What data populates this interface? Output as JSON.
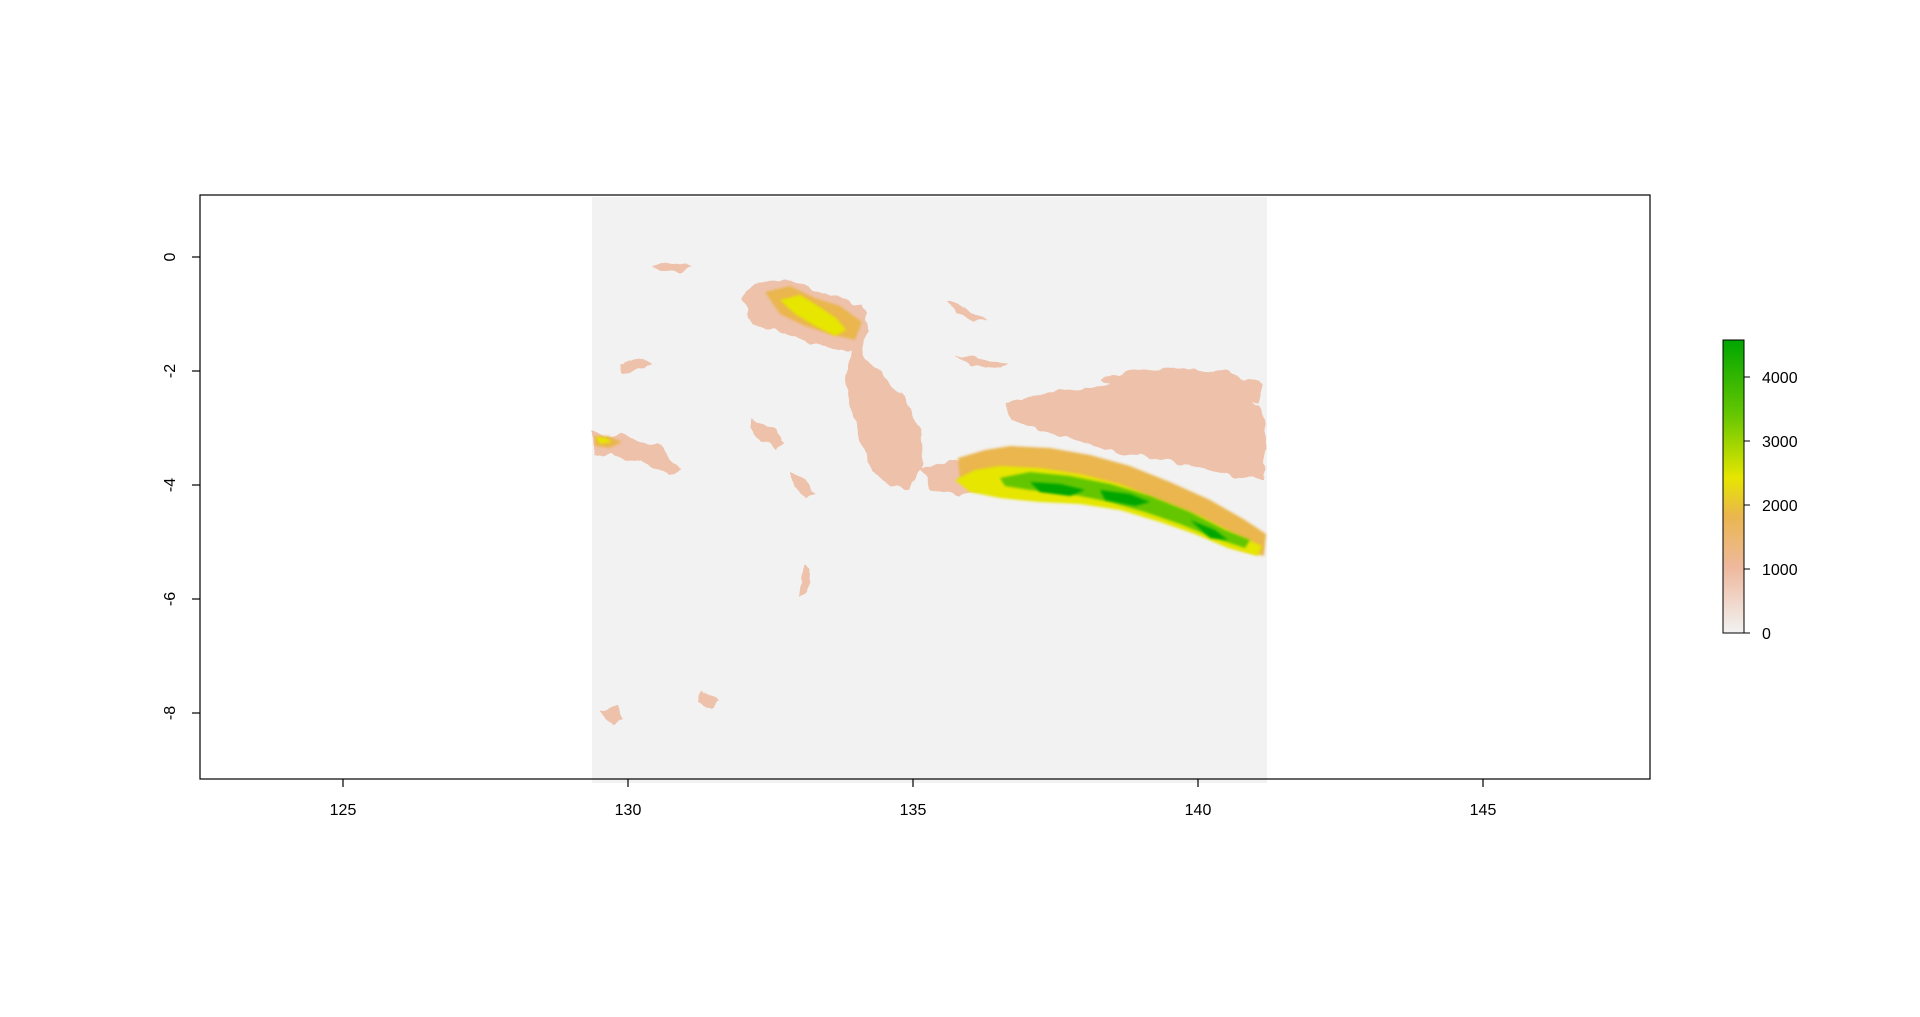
{
  "map": {
    "type": "raster",
    "x_ticks": [
      "125",
      "130",
      "135",
      "140",
      "145"
    ],
    "y_ticks": [
      "0",
      "-2",
      "-4",
      "-6",
      "-8"
    ],
    "x_range": [
      122.5,
      148
    ],
    "y_range": [
      -9.2,
      1.1
    ],
    "raster_extent": {
      "x": [
        129.3,
        141.0
      ],
      "y": [
        -9.2,
        1.1
      ]
    },
    "background_color": "#f2f2f2",
    "legend": {
      "ticks": [
        "0",
        "1000",
        "2000",
        "3000",
        "4000"
      ],
      "range": [
        0,
        4600
      ],
      "colors": [
        "#f2f2f2",
        "#eeb99f",
        "#eab64e",
        "#e6e600",
        "#63c600",
        "#00a600"
      ]
    }
  }
}
